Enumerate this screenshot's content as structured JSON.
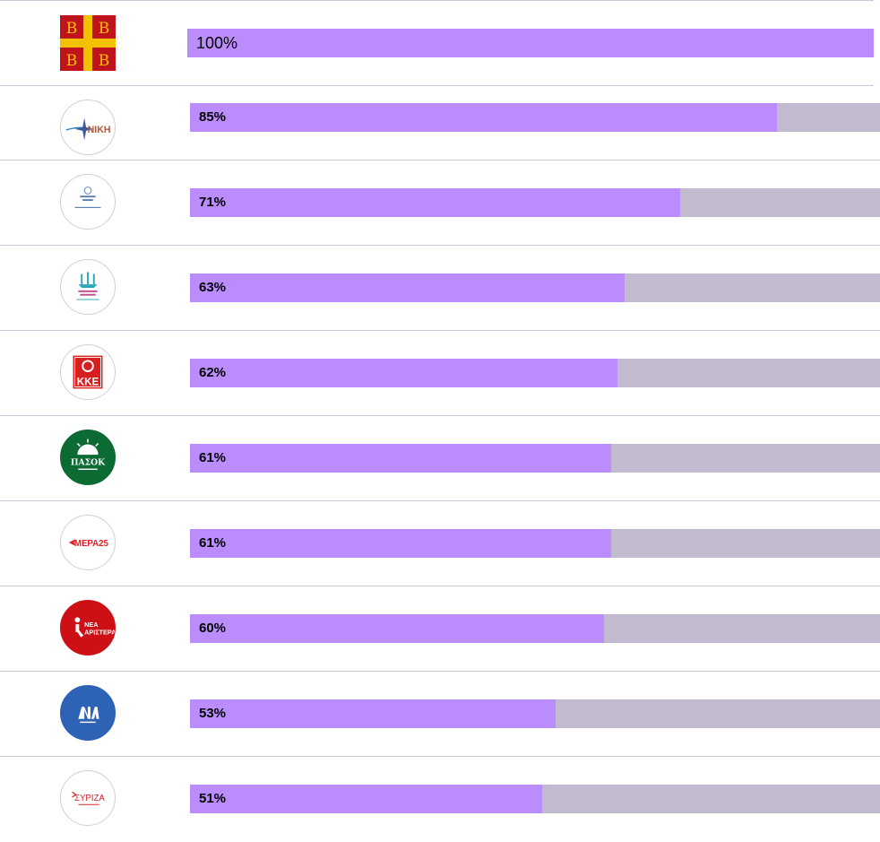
{
  "rows": [
    {
      "logo": "byzantine-flag-icon",
      "pct": "100%",
      "value": 100
    },
    {
      "logo": "niki-logo-icon",
      "pct": "85%",
      "value": 85,
      "logo_text": "NIKH"
    },
    {
      "logo": "elliniki-lysi-logo-icon",
      "pct": "71%",
      "value": 71
    },
    {
      "logo": "plefsi-eleftherias-logo-icon",
      "pct": "63%",
      "value": 63
    },
    {
      "logo": "kke-logo-icon",
      "pct": "62%",
      "value": 62,
      "logo_text": "KKE"
    },
    {
      "logo": "pasok-logo-icon",
      "pct": "61%",
      "value": 61,
      "logo_text": "ΠΑΣΟΚ"
    },
    {
      "logo": "mera25-logo-icon",
      "pct": "61%",
      "value": 61,
      "logo_text": "MEPA25"
    },
    {
      "logo": "nea-aristera-logo-icon",
      "pct": "60%",
      "value": 60,
      "logo_text": "ΝΕΑ ΑΡΙΣΤΕΡΑ"
    },
    {
      "logo": "nea-dimokratia-logo-icon",
      "pct": "53%",
      "value": 53
    },
    {
      "logo": "syriza-logo-icon",
      "pct": "51%",
      "value": 51,
      "logo_text": "ΣΥΡΙΖΑ"
    }
  ],
  "colors": {
    "fill": "#bb8cfb",
    "track": "#c2bacf",
    "separator": "#c8c8d8"
  }
}
